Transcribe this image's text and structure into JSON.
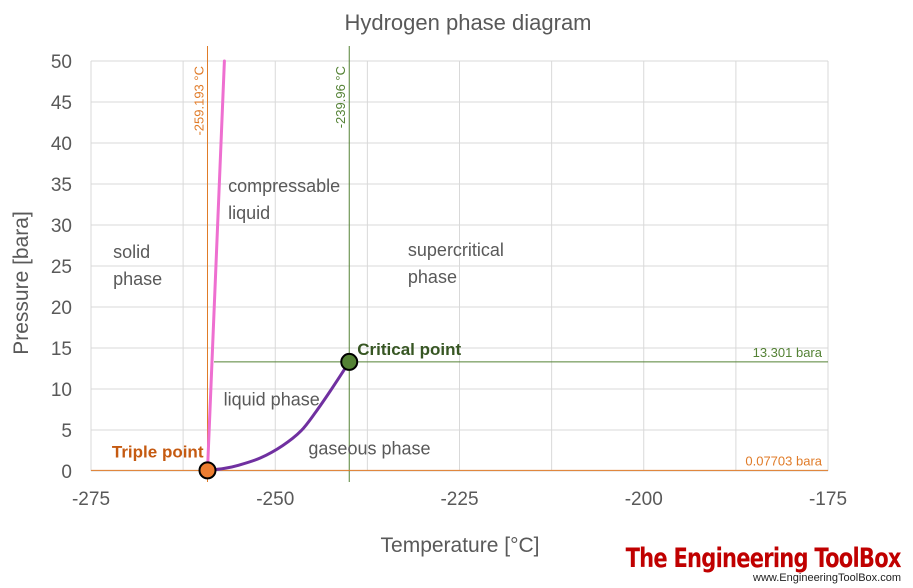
{
  "chart_data": {
    "type": "line",
    "title": "Hydrogen phase diagram",
    "xlabel": "Temperature [°C]",
    "ylabel": "Pressure [bara]",
    "xlim": [
      -275,
      -175
    ],
    "ylim": [
      0,
      50
    ],
    "x_ticks": [
      -275,
      -250,
      -225,
      -200,
      -175
    ],
    "y_ticks": [
      0,
      5,
      10,
      15,
      20,
      25,
      30,
      35,
      40,
      45,
      50
    ],
    "grid": true,
    "series": [
      {
        "color": "#ee6fd0",
        "x": [
          -259.193,
          -256.9
        ],
        "y": [
          0.07703,
          50
        ]
      },
      {
        "color": "#7030a0",
        "x": [
          -259.193,
          -257,
          -255,
          -252,
          -249,
          -246.5,
          -244.5,
          -242.5,
          -239.96
        ],
        "y": [
          0.07703,
          0.3,
          0.7,
          1.6,
          3.1,
          4.9,
          7.2,
          9.8,
          13.301
        ]
      }
    ],
    "reference_lines": [
      {
        "orientation": "vertical",
        "value": -259.193,
        "label": "-259.193 °C",
        "color": "#e07b28"
      },
      {
        "orientation": "vertical",
        "value": -239.96,
        "label": "-239.96 °C",
        "color": "#548235"
      },
      {
        "orientation": "horizontal",
        "value": 13.301,
        "label": "13.301 bara",
        "color": "#548235"
      },
      {
        "orientation": "horizontal",
        "value": 0.07703,
        "label": "0.07703 bara",
        "color": "#e07b28"
      }
    ],
    "points": [
      {
        "name": "Triple point",
        "x": -259.193,
        "y": 0.07703,
        "color": "#ed7d31",
        "label_color": "#c55a11"
      },
      {
        "name": "Critical point",
        "x": -239.96,
        "y": 13.301,
        "color": "#548235",
        "label_color": "#375623"
      }
    ],
    "regions": [
      {
        "id": "solid",
        "lines": [
          "solid",
          "phase"
        ],
        "x": -272,
        "y": 26
      },
      {
        "id": "compressable",
        "lines": [
          "compressable",
          "liquid"
        ],
        "x": -256.4,
        "y": 34
      },
      {
        "id": "supercritical",
        "lines": [
          "supercritical",
          "phase"
        ],
        "x": -232,
        "y": 26.2
      },
      {
        "id": "liquid",
        "lines": [
          "liquid phase"
        ],
        "x": -257,
        "y": 8
      },
      {
        "id": "gaseous",
        "lines": [
          "gaseous phase"
        ],
        "x": -245.5,
        "y": 2
      }
    ]
  },
  "watermark": {
    "logo_text": "The Engineering ToolBox",
    "url": "www.EngineeringToolBox.com"
  }
}
